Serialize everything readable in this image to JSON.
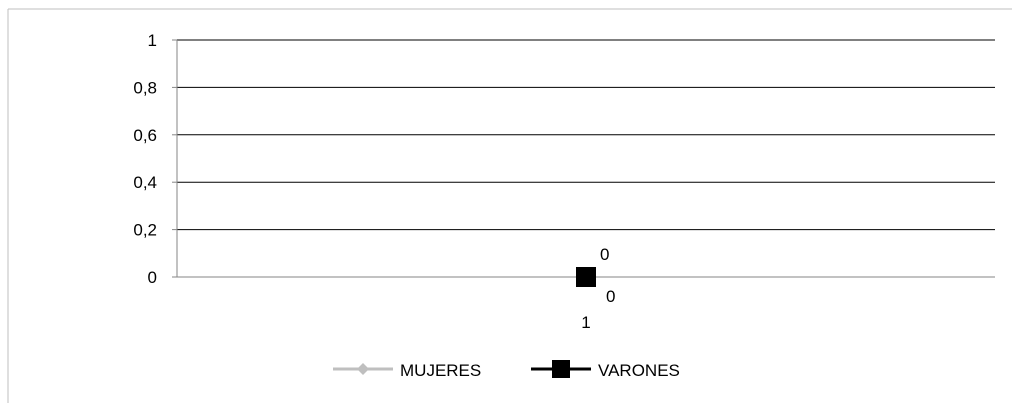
{
  "chart_data": {
    "type": "line",
    "categories": [
      "1"
    ],
    "series": [
      {
        "name": "MUJERES",
        "values": [
          0
        ],
        "color": "#bfbfbf",
        "marker": "diamond"
      },
      {
        "name": "VARONES",
        "values": [
          0
        ],
        "color": "#000000",
        "marker": "square"
      }
    ],
    "y_ticks": [
      "0",
      "0,2",
      "0,4",
      "0,6",
      "0,8",
      "1"
    ],
    "ylim": [
      0,
      1
    ],
    "grid": true,
    "legend": "bottom",
    "data_labels": [
      "0",
      "0"
    ]
  }
}
